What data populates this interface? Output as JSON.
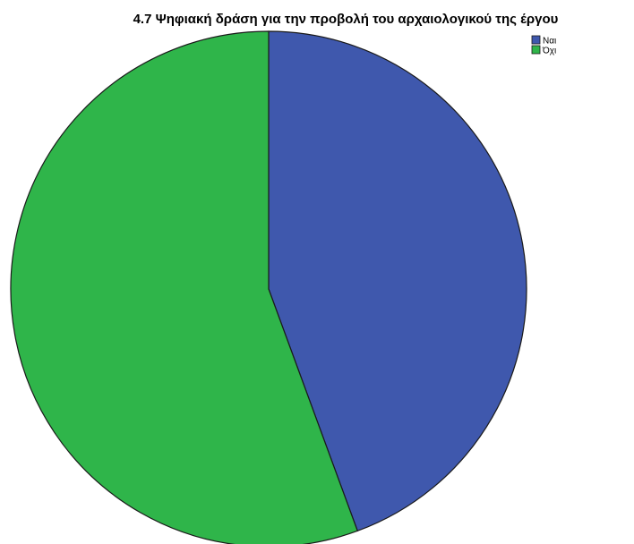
{
  "chart_data": {
    "type": "pie",
    "title": "4.7 Ψηφιακή δράση για την προβολή του αρχαιολογικού της έργου",
    "categories": [
      "Ναι",
      "Όχι"
    ],
    "values": [
      44.4,
      55.6
    ],
    "colors": [
      "#3f58ad",
      "#2fb54a"
    ],
    "start_angle": "12 o'clock",
    "direction": "clockwise",
    "legend": {
      "placement": "top-right",
      "entries": [
        "Ναι",
        "Όχι"
      ]
    },
    "grid": false
  }
}
